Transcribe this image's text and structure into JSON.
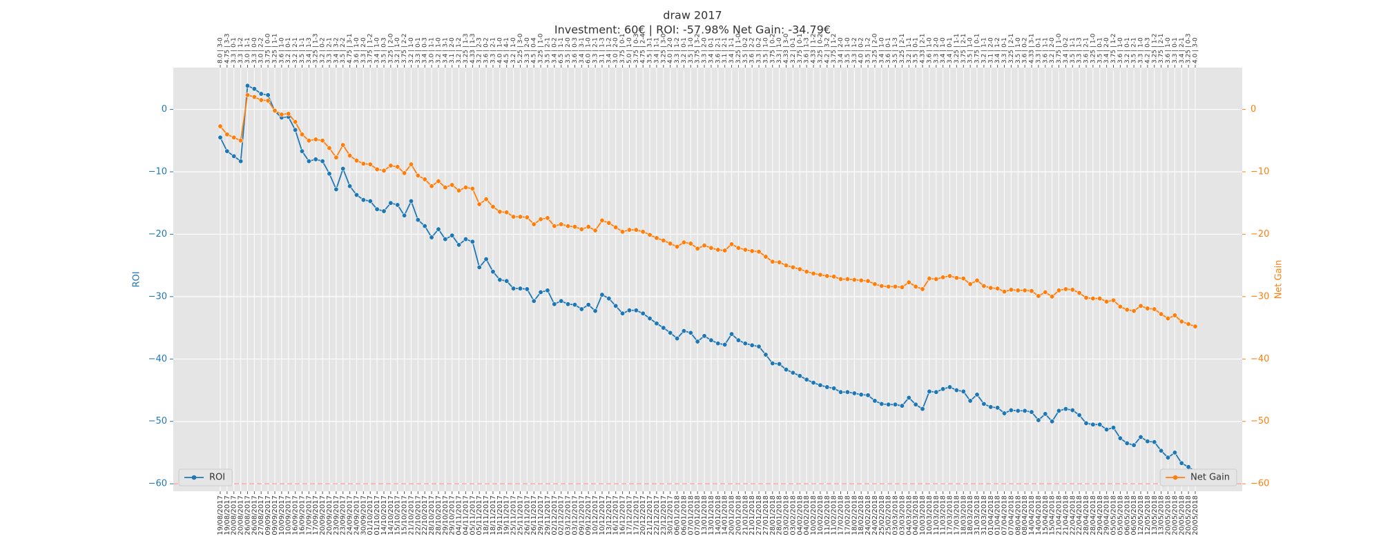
{
  "chart_data": {
    "type": "line",
    "title": "draw 2017",
    "subtitle": "Investment: 60€ | ROI: -57.98% Net Gain: -34.79€",
    "ylabel": "ROI",
    "y2label": "Net Gain",
    "categories": [
      "19/08/2017",
      "19/08/2017",
      "20/08/2017",
      "20/08/2017",
      "26/08/2017",
      "26/08/2017",
      "27/08/2017",
      "09/09/2017",
      "09/09/2017",
      "10/09/2017",
      "10/09/2017",
      "16/09/2017",
      "16/09/2017",
      "17/09/2017",
      "17/09/2017",
      "20/09/2017",
      "20/09/2017",
      "23/09/2017",
      "23/09/2017",
      "24/09/2017",
      "24/09/2017",
      "30/09/2017",
      "01/10/2017",
      "01/10/2017",
      "14/10/2017",
      "14/10/2017",
      "15/10/2017",
      "15/10/2017",
      "21/10/2017",
      "22/10/2017",
      "22/10/2017",
      "28/10/2017",
      "28/10/2017",
      "29/10/2017",
      "29/10/2017",
      "04/11/2017",
      "04/11/2017",
      "05/11/2017",
      "05/11/2017",
      "18/11/2017",
      "18/11/2017",
      "19/11/2017",
      "19/11/2017",
      "25/11/2017",
      "25/11/2017",
      "26/11/2017",
      "26/11/2017",
      "29/11/2017",
      "29/11/2017",
      "02/12/2017",
      "02/12/2017",
      "03/12/2017",
      "03/12/2017",
      "09/12/2017",
      "09/12/2017",
      "10/12/2017",
      "10/12/2017",
      "13/12/2017",
      "16/12/2017",
      "16/12/2017",
      "17/12/2017",
      "17/12/2017",
      "20/12/2017",
      "21/12/2017",
      "22/12/2017",
      "23/12/2017",
      "30/12/2017",
      "06/01/2018",
      "06/01/2018",
      "07/01/2018",
      "07/01/2018",
      "13/01/2018",
      "13/01/2018",
      "14/01/2018",
      "14/01/2018",
      "20/01/2018",
      "20/01/2018",
      "21/01/2018",
      "21/01/2018",
      "27/01/2018",
      "27/01/2018",
      "28/01/2018",
      "28/01/2018",
      "03/02/2018",
      "03/02/2018",
      "04/02/2018",
      "04/02/2018",
      "10/02/2018",
      "10/02/2018",
      "11/02/2018",
      "11/02/2018",
      "17/02/2018",
      "17/02/2018",
      "18/02/2018",
      "18/02/2018",
      "24/02/2018",
      "24/02/2018",
      "25/02/2018",
      "25/02/2018",
      "03/03/2018",
      "03/03/2018",
      "04/03/2018",
      "04/03/2018",
      "10/03/2018",
      "10/03/2018",
      "11/03/2018",
      "11/03/2018",
      "17/03/2018",
      "17/03/2018",
      "18/03/2018",
      "18/03/2018",
      "31/03/2018",
      "31/03/2018",
      "01/04/2018",
      "01/04/2018",
      "07/04/2018",
      "07/04/2018",
      "08/04/2018",
      "08/04/2018",
      "14/04/2018",
      "14/04/2018",
      "15/04/2018",
      "15/04/2018",
      "21/04/2018",
      "21/04/2018",
      "22/04/2018",
      "22/04/2018",
      "28/04/2018",
      "28/04/2018",
      "29/04/2018",
      "29/04/2018",
      "05/05/2018",
      "05/05/2018",
      "06/05/2018",
      "06/05/2018",
      "12/05/2018",
      "12/05/2018",
      "13/05/2018",
      "13/05/2018",
      "20/05/2018",
      "20/05/2018",
      "20/05/2018",
      "20/05/2018",
      "20/05/2018"
    ],
    "top_categories": [
      "8.0 | 3-0",
      "4.75 | 3-3",
      "3.3 | 0-1",
      "3.3 | 1-2",
      "3.0 | 1-1",
      "3.3 | 0-0",
      "3.0 | 2-2",
      "3.75 | 0-0",
      "3.25 | 1-1",
      "3.6 | 1-0",
      "3.2 | 0-1",
      "3.2 | 2-1",
      "3.5 | 1-1",
      "3.4 | 1-3",
      "3.25 | 1-3",
      "3.2 | 0-2",
      "3.3 | 2-1",
      "3.4 | 3-2",
      "3.5 | 2-2",
      "4.75 | 3-1",
      "3.6 | 1-0",
      "3.3 | 2-0",
      "3.75 | 1-2",
      "3.4 | 1-0",
      "3.5 | 0-3",
      "3.25 | 2-0",
      "3.2 | 1-0",
      "3.75 | 2-2",
      "3.2 | 1-0",
      "3.3 | 0-1",
      "3.4 | 0-3",
      "3.0 | 1-1",
      "3.2 | 1-0",
      "3.4 | 3-1",
      "3.1 | 2-0",
      "3.2 | 1-2",
      "3.25 | 1-3",
      "4.33 | 1-3",
      "3.2 | 2-3",
      "3.6 | 0-2",
      "3.3 | 2-1",
      "4.0 | 1-0",
      "4.5 | 4-1",
      "3.2 | 1-0",
      "5.25 | 3-0",
      "3.3 | 2-0",
      "4.5 | 0-4",
      "3.25 | 1-0",
      "3.5 | 2-1",
      "3.4 | 0-2",
      "6.5 | 1-1",
      "3.5 | 2-0",
      "3.6 | 0-3",
      "3.4 | 3-1",
      "6.0 | 1-0",
      "3.3 | 2-1",
      "3.1 | 1-3",
      "3.4 | 1-2",
      "3.0 | 2-0",
      "3.75 | 0-1",
      "5.0 | 1-0",
      "3.75 | 0-3",
      "4.75 | 2-4",
      "3.5 | 3-1",
      "3.4 | 1-1",
      "3.25 | 3-0",
      "4.0 | 2-0",
      "3.3 | 1-2",
      "3.2 | 0-1",
      "3.5 | 1-0",
      "3.75 | 3-2",
      "3.3 | 2-0",
      "3.4 | 0-1",
      "3.6 | 2-1",
      "3.1 | 2-1",
      "3.4 | 1-1",
      "3.25 | 1-0",
      "3.5 | 0-2",
      "3.6 | 2-2",
      "3.3 | 0-2",
      "3.5 | 1-0",
      "3.75 | 0-2",
      "3.3 | 1-0",
      "4.33 | 3-0",
      "3.2 | 0-1",
      "3.75 | 0-1",
      "3.6 | 1-3",
      "4.33 | 1-2",
      "3.25 | 0-2",
      "4.2 | 3-2",
      "3.75 | 1-2",
      "3.4 | 2-0",
      "3.5 | 1-0",
      "3.3 | 1-2",
      "4.0 | 0-2",
      "3.5 | 1-2",
      "3.25 | 2-0",
      "3.4 | 1-0",
      "3.6 | 0-1",
      "3.5 | 1-3",
      "3.25 | 2-1",
      "3.2 | 1-1",
      "3.5 | 0-1",
      "4.33 | 2-1",
      "3.6 | 1-0",
      "3.3 | 2-0",
      "3.4 | 1-0",
      "3.4 | 0-1",
      "3.25 | 1-1",
      "3.75 | 2-1",
      "3.5 | 1-0",
      "3.75 | 0-1",
      "3.2 | 1-1",
      "3.1 | 2-0",
      "3.4 | 1-2",
      "3.3 | 0-1",
      "3.25 | 2-1",
      "3.5 | 1-0",
      "3.6 | 0-2",
      "4.33 | 3-1",
      "3.3 | 0-1",
      "3.6 | 1-1",
      "3.2 | 2-0",
      "3.75 | 1-0",
      "3.4 | 0-2",
      "3.5 | 1-1",
      "3.3 | 1-3",
      "3.6 | 2-1",
      "3.25 | 1-0",
      "3.5 | 0-1",
      "3.4 | 2-0",
      "3.75 | 1-2",
      "3.6 | 1-0",
      "3.2 | 0-1",
      "3.5 | 2-1",
      "3.3 | 1-0",
      "4.2 | 0-3",
      "3.25 | 1-2",
      "3.75 | 2-1",
      "3.6 | 1-0",
      "3.3 | 0-1",
      "3.4 | 2-1",
      "3.25 | 0-3",
      "4.0 | 3-0"
    ],
    "series": [
      {
        "name": "ROI",
        "color": "#1f77b4",
        "axis": "y",
        "legend": "lower left",
        "values": [
          -4.5,
          -6.7,
          -7.5,
          -8.3,
          3.8,
          3.3,
          2.5,
          2.3,
          -0.3,
          -1.3,
          -1.2,
          -3.3,
          -6.7,
          -8.3,
          -8,
          -8.3,
          -10.3,
          -12.8,
          -9.5,
          -12.3,
          -13.7,
          -14.5,
          -14.7,
          -16,
          -16.3,
          -15,
          -15.3,
          -17,
          -14.7,
          -17.7,
          -18.7,
          -20.5,
          -19.2,
          -20.8,
          -20.2,
          -21.7,
          -20.8,
          -21.2,
          -25.3,
          -24,
          -26,
          -27.3,
          -27.5,
          -28.7,
          -28.7,
          -28.8,
          -30.7,
          -29.3,
          -29,
          -31.2,
          -30.7,
          -31.2,
          -31.3,
          -32,
          -31.3,
          -32.3,
          -29.7,
          -30.3,
          -31.5,
          -32.7,
          -32.2,
          -32.2,
          -32.7,
          -33.5,
          -34.3,
          -35,
          -35.8,
          -36.7,
          -35.5,
          -35.8,
          -37.2,
          -36.3,
          -37,
          -37.5,
          -37.7,
          -36,
          -37,
          -37.5,
          -37.8,
          -38,
          -39.3,
          -40.7,
          -40.8,
          -41.7,
          -42.2,
          -42.7,
          -43.3,
          -43.8,
          -44.2,
          -44.5,
          -44.7,
          -45.3,
          -45.3,
          -45.5,
          -45.7,
          -45.8,
          -46.7,
          -47.2,
          -47.3,
          -47.3,
          -47.5,
          -46.2,
          -47.3,
          -48,
          -45.2,
          -45.3,
          -44.8,
          -44.5,
          -45,
          -45.2,
          -46.7,
          -45.7,
          -47.2,
          -47.7,
          -47.8,
          -48.7,
          -48.2,
          -48.3,
          -48.3,
          -48.5,
          -49.8,
          -48.8,
          -50,
          -48.3,
          -48,
          -48.2,
          -49,
          -50.3,
          -50.5,
          -50.5,
          -51.3,
          -51,
          -52.7,
          -53.5,
          -53.8,
          -52.5,
          -53.2,
          -53.3,
          -54.7,
          -55.8,
          -55,
          -56.7,
          -57.3,
          -57.98
        ]
      },
      {
        "name": "Net Gain",
        "color": "#ff7f0e",
        "axis": "y2",
        "legend": "lower right",
        "values": [
          -2.7,
          -4,
          -4.5,
          -5,
          2.3,
          2,
          1.5,
          1.4,
          -0.2,
          -0.8,
          -0.7,
          -2,
          -4,
          -5,
          -4.8,
          -5,
          -6.2,
          -7.7,
          -5.7,
          -7.4,
          -8.2,
          -8.7,
          -8.8,
          -9.6,
          -9.8,
          -9,
          -9.2,
          -10.2,
          -8.8,
          -10.6,
          -11.2,
          -12.3,
          -11.5,
          -12.5,
          -12.1,
          -13,
          -12.5,
          -12.7,
          -15.2,
          -14.4,
          -15.6,
          -16.4,
          -16.5,
          -17.2,
          -17.2,
          -17.3,
          -18.4,
          -17.6,
          -17.4,
          -18.7,
          -18.4,
          -18.7,
          -18.8,
          -19.2,
          -18.8,
          -19.4,
          -17.8,
          -18.2,
          -18.9,
          -19.6,
          -19.3,
          -19.3,
          -19.6,
          -20.1,
          -20.6,
          -21,
          -21.5,
          -22,
          -21.3,
          -21.5,
          -22.3,
          -21.8,
          -22.2,
          -22.5,
          -22.6,
          -21.6,
          -22.2,
          -22.5,
          -22.7,
          -22.8,
          -23.6,
          -24.4,
          -24.5,
          -25,
          -25.3,
          -25.6,
          -26,
          -26.3,
          -26.5,
          -26.7,
          -26.8,
          -27.2,
          -27.2,
          -27.3,
          -27.4,
          -27.5,
          -28,
          -28.3,
          -28.4,
          -28.4,
          -28.5,
          -27.7,
          -28.4,
          -28.8,
          -27.1,
          -27.2,
          -26.9,
          -26.7,
          -27,
          -27.1,
          -28,
          -27.4,
          -28.3,
          -28.6,
          -28.7,
          -29.2,
          -28.9,
          -29,
          -29,
          -29.1,
          -29.9,
          -29.3,
          -30,
          -29,
          -28.8,
          -28.9,
          -29.4,
          -30.2,
          -30.3,
          -30.3,
          -30.8,
          -30.6,
          -31.6,
          -32.1,
          -32.3,
          -31.5,
          -31.9,
          -32,
          -32.8,
          -33.5,
          -33,
          -34,
          -34.4,
          -34.79
        ]
      }
    ],
    "ylim": [
      -61.2,
      6.7
    ],
    "yticks": [
      {
        "value": -60,
        "label": "−60"
      },
      {
        "value": -50,
        "label": "−50"
      },
      {
        "value": -40,
        "label": "−40"
      },
      {
        "value": -30,
        "label": "−30"
      },
      {
        "value": -20,
        "label": "−20"
      },
      {
        "value": -10,
        "label": "−10"
      },
      0
    ],
    "y2lim": [
      -61.2,
      6.7
    ],
    "y2ticks": [
      {
        "value": -60,
        "label": "−60"
      },
      {
        "value": -50,
        "label": "−50"
      },
      {
        "value": -40,
        "label": "−40"
      },
      {
        "value": -30,
        "label": "−30"
      },
      {
        "value": -20,
        "label": "−20"
      },
      {
        "value": -10,
        "label": "−10"
      },
      0
    ],
    "ref_line": {
      "value": -60,
      "color": "#ff9999"
    },
    "grid": true
  }
}
